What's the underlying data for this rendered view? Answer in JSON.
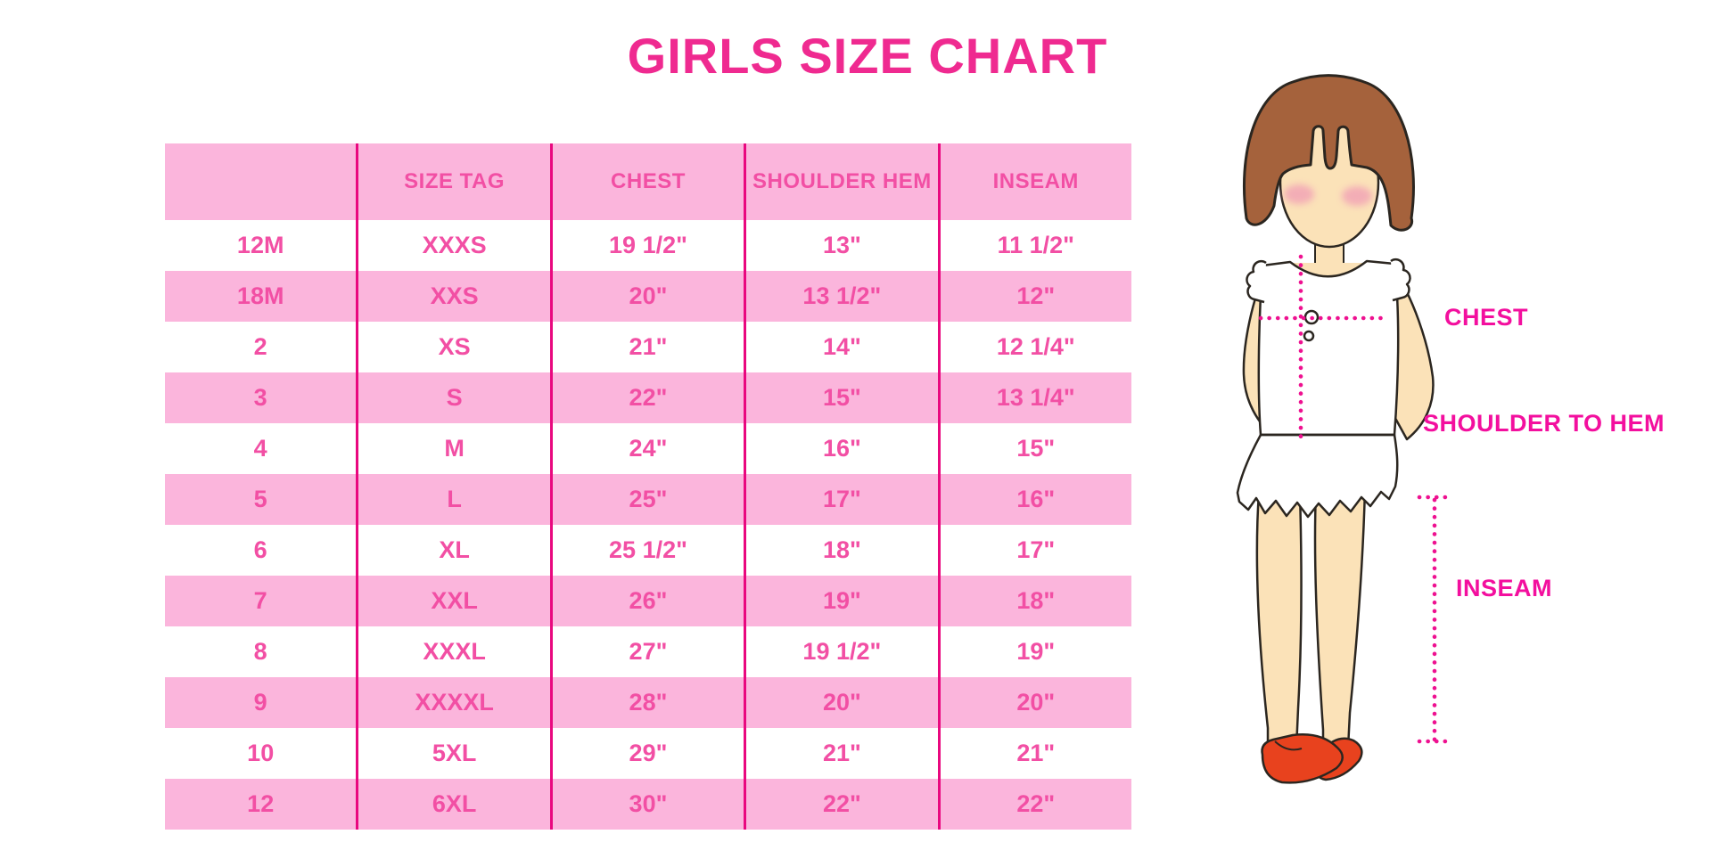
{
  "chart_data": {
    "type": "table",
    "title": "GIRLS SIZE CHART",
    "columns": [
      "",
      "SIZE TAG",
      "CHEST",
      "SHOULDER HEM",
      "INSEAM"
    ],
    "rows": [
      [
        "12M",
        "XXXS",
        "19 1/2\"",
        "13\"",
        "11 1/2\""
      ],
      [
        "18M",
        "XXS",
        "20\"",
        "13 1/2\"",
        "12\""
      ],
      [
        "2",
        "XS",
        "21\"",
        "14\"",
        "12 1/4\""
      ],
      [
        "3",
        "S",
        "22\"",
        "15\"",
        "13 1/4\""
      ],
      [
        "4",
        "M",
        "24\"",
        "16\"",
        "15\""
      ],
      [
        "5",
        "L",
        "25\"",
        "17\"",
        "16\""
      ],
      [
        "6",
        "XL",
        "25 1/2\"",
        "18\"",
        "17\""
      ],
      [
        "7",
        "XXL",
        "26\"",
        "19\"",
        "18\""
      ],
      [
        "8",
        "XXXL",
        "27\"",
        "19 1/2\"",
        "19\""
      ],
      [
        "9",
        "XXXXL",
        "28\"",
        "20\"",
        "20\""
      ],
      [
        "10",
        "5XL",
        "29\"",
        "21\"",
        "21\""
      ],
      [
        "12",
        "6XL",
        "30\"",
        "22\"",
        "22\""
      ]
    ],
    "grid": "alternating-row-stripes",
    "legend_position": "none"
  },
  "figure": {
    "labels": {
      "chest": "CHEST",
      "shoulder_to_hem": "SHOULDER TO HEM",
      "inseam": "INSEAM"
    }
  },
  "colors": {
    "title_pink": "#EF2A90",
    "cell_text_pink": "#F24FA4",
    "row_stripe_pink": "#FBB5DC",
    "column_line_magenta": "#E9087F",
    "label_magenta": "#F30F9E",
    "dotted_guide_pink": "#EE1190",
    "hair_brown": "#A5623C",
    "skin_tone": "#FBE2B8",
    "shoe_red": "#E8421E"
  }
}
